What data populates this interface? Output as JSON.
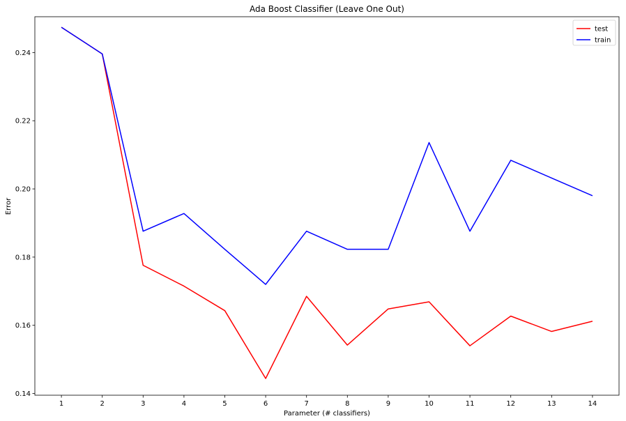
{
  "chart_data": {
    "type": "line",
    "title": "Ada Boost Classifier (Leave One Out)",
    "xlabel": "Parameter (# classifiers)",
    "ylabel": "Error",
    "x": [
      1,
      2,
      3,
      4,
      5,
      6,
      7,
      8,
      9,
      10,
      11,
      12,
      13,
      14
    ],
    "xticks": [
      "1",
      "2",
      "3",
      "4",
      "5",
      "6",
      "7",
      "8",
      "9",
      "10",
      "11",
      "12",
      "13",
      "14"
    ],
    "yticks": [
      "0.14",
      "0.16",
      "0.18",
      "0.20",
      "0.22",
      "0.24"
    ],
    "ytick_values": [
      0.14,
      0.16,
      0.18,
      0.2,
      0.22,
      0.24
    ],
    "xlim": [
      0.35,
      14.65
    ],
    "ylim": [
      0.1395,
      0.2505
    ],
    "grid": false,
    "legend_position": "top-right",
    "series": [
      {
        "name": "test",
        "color": "#ff0000",
        "values": [
          0.2474,
          0.2396,
          0.1776,
          0.1715,
          0.1643,
          0.1444,
          0.1685,
          0.1542,
          0.1648,
          0.1669,
          0.154,
          0.1627,
          0.1582,
          0.1612
        ]
      },
      {
        "name": "train",
        "color": "#0000ff",
        "values": [
          0.2474,
          0.2396,
          0.1876,
          0.1928,
          0.1823,
          0.172,
          0.1876,
          0.1823,
          0.1823,
          0.2136,
          0.1876,
          0.2084,
          0.2032,
          0.198
        ]
      }
    ]
  }
}
